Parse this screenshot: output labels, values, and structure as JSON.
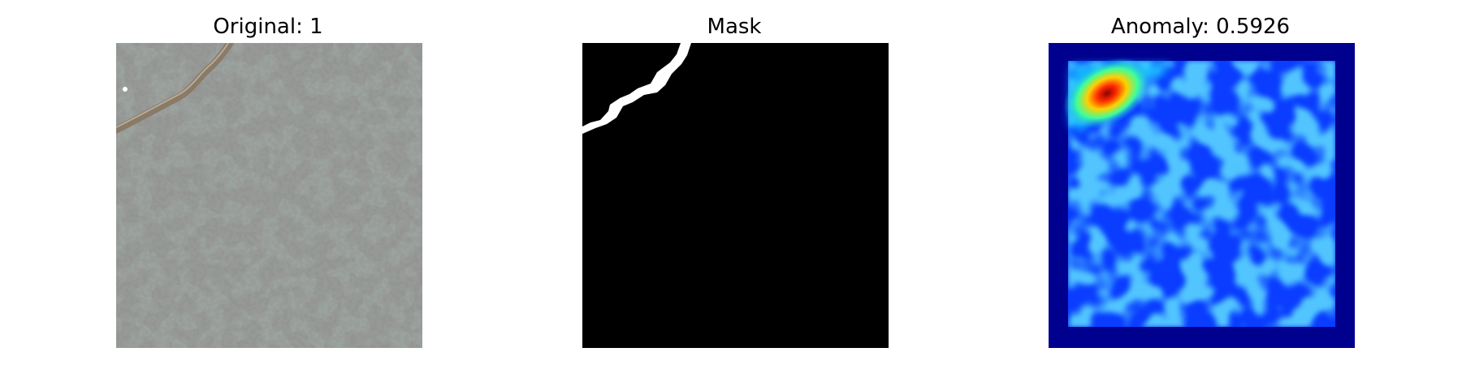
{
  "panels": {
    "original": {
      "title": "Original: 1"
    },
    "mask": {
      "title": "Mask"
    },
    "anomaly": {
      "title": "Anomaly: 0.5926"
    }
  },
  "colors": {
    "tile_base": "#9aa39e",
    "tile_spots": "#4a4c49",
    "crack": "#8a7a66",
    "mask_bg": "#000000",
    "mask_defect": "#ffffff",
    "heat_border": "#00008f",
    "heat_base": "#0a3dff",
    "heat_light": "#19a8ff",
    "heat_hot": "#ff2b00",
    "heat_core": "#8f0000"
  }
}
